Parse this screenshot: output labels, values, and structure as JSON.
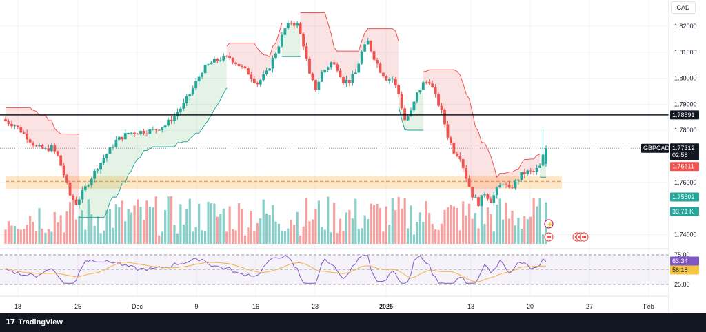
{
  "currency_label": "CAD",
  "brand": {
    "name": "TradingView",
    "logo_icon": "tradingview-logo-icon"
  },
  "colors": {
    "bull": "#26a69a",
    "bear": "#ef5350",
    "up_fill": "rgba(76,175,80,0.15)",
    "down_fill": "rgba(239,83,80,0.16)",
    "zone": "rgba(255,152,0,0.22)",
    "rsi_line": "#7e57c2",
    "rsi_ma": "#f5b041",
    "rsi_band": "rgba(126,87,194,0.08)"
  },
  "chart_data": [
    {
      "type": "candlestick",
      "symbol": "GBPCAD",
      "y_ticks": [
        "1.82000",
        "1.81000",
        "1.80000",
        "1.79000",
        "1.78000",
        "1.76000",
        "1.74000"
      ],
      "ylim": [
        1.737,
        1.829
      ],
      "x_ticks": [
        "18",
        "25",
        "Dec",
        "9",
        "16",
        "23",
        "2025",
        "13",
        "20",
        "27",
        "Feb"
      ],
      "x_ticks_bold": [
        "2025"
      ],
      "horizontal_line": 1.78591,
      "zone": {
        "low": 1.7575,
        "high": 1.7625,
        "mid": 1.7604
      },
      "last_price": 1.77312,
      "countdown": "02:58",
      "price_labels": [
        {
          "name": "horizontal-line",
          "text": "1.78591",
          "value": 1.78591,
          "bg": "#131722",
          "fg": "#ffffff"
        },
        {
          "name": "symbol",
          "text": "GBPCAD",
          "value": 1.77312,
          "bg": "#131722",
          "fg": "#ffffff"
        },
        {
          "name": "last-price",
          "text": "1.77312",
          "value": 1.77312,
          "bg": "#131722",
          "fg": "#ffffff"
        },
        {
          "name": "supertrend-down",
          "text": "1.76611",
          "value": 1.76611,
          "bg": "#ef5350",
          "fg": "#ffffff"
        },
        {
          "name": "supertrend-up",
          "text": "1.75502",
          "value": 1.75502,
          "bg": "#26a69a",
          "fg": "#ffffff"
        }
      ],
      "volume_label": "33.71 K",
      "event_icons": [
        "lightning-icon",
        "flag-icon",
        "flag-icon",
        "flag-icon",
        "flag-icon"
      ],
      "waypoints": [
        [
          0,
          1.7835
        ],
        [
          3,
          1.782
        ],
        [
          7,
          1.7775
        ],
        [
          10,
          1.7735
        ],
        [
          13,
          1.7725
        ],
        [
          15,
          1.7735
        ],
        [
          17,
          1.77
        ],
        [
          19,
          1.763
        ],
        [
          21,
          1.755
        ],
        [
          23,
          1.752
        ],
        [
          25,
          1.756
        ],
        [
          27,
          1.76
        ],
        [
          30,
          1.766
        ],
        [
          33,
          1.771
        ],
        [
          36,
          1.776
        ],
        [
          40,
          1.779
        ],
        [
          44,
          1.7795
        ],
        [
          48,
          1.78
        ],
        [
          52,
          1.782
        ],
        [
          55,
          1.7855
        ],
        [
          58,
          1.79
        ],
        [
          61,
          1.796
        ],
        [
          64,
          1.803
        ],
        [
          67,
          1.806
        ],
        [
          70,
          1.8075
        ],
        [
          73,
          1.808
        ],
        [
          76,
          1.805
        ],
        [
          79,
          1.802
        ],
        [
          82,
          1.798
        ],
        [
          85,
          1.802
        ],
        [
          88,
          1.81
        ],
        [
          91,
          1.819
        ],
        [
          93,
          1.8215
        ],
        [
          95,
          1.8205
        ],
        [
          97,
          1.813
        ],
        [
          99,
          1.801
        ],
        [
          101,
          1.796
        ],
        [
          103,
          1.802
        ],
        [
          106,
          1.806
        ],
        [
          108,
          1.804
        ],
        [
          110,
          1.799
        ],
        [
          112,
          1.799
        ],
        [
          114,
          1.802
        ],
        [
          116,
          1.81
        ],
        [
          118,
          1.814
        ],
        [
          120,
          1.808
        ],
        [
          122,
          1.803
        ],
        [
          124,
          1.8
        ],
        [
          126,
          1.8
        ],
        [
          128,
          1.794
        ],
        [
          130,
          1.784
        ],
        [
          132,
          1.787
        ],
        [
          134,
          1.794
        ],
        [
          136,
          1.798
        ],
        [
          138,
          1.799
        ],
        [
          140,
          1.793
        ],
        [
          142,
          1.787
        ],
        [
          144,
          1.778
        ],
        [
          146,
          1.772
        ],
        [
          148,
          1.77
        ],
        [
          150,
          1.762
        ],
        [
          152,
          1.755
        ],
        [
          154,
          1.752
        ],
        [
          156,
          1.756
        ],
        [
          158,
          1.753
        ],
        [
          160,
          1.757
        ],
        [
          162,
          1.76
        ],
        [
          164,
          1.757
        ],
        [
          166,
          1.76
        ],
        [
          168,
          1.763
        ],
        [
          170,
          1.764
        ],
        [
          172,
          1.764
        ],
        [
          174,
          1.766
        ],
        [
          175,
          1.77
        ],
        [
          176,
          1.7731
        ]
      ],
      "rsi": {
        "levels": [
          75.0,
          25.0
        ],
        "current": 63.34,
        "ma": 56.18,
        "level_labels": [
          "75.00",
          "25.00"
        ],
        "current_label": "63.34",
        "ma_label": "56.18"
      }
    }
  ]
}
